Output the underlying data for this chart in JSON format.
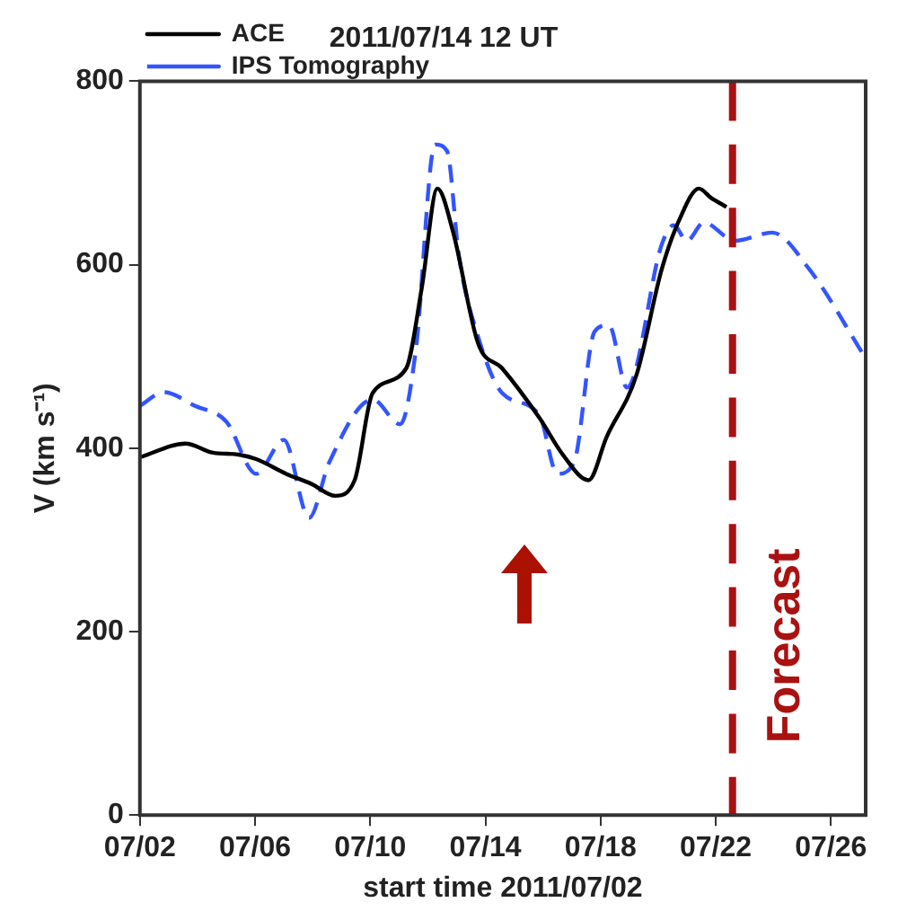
{
  "chart_data": {
    "type": "line",
    "title": "2011/07/14 12 UT",
    "xlabel": "start time 2011/07/02",
    "ylabel": "V (km s⁻¹)",
    "xlim": [
      "2011-07-02",
      "2011-07-27T05:00"
    ],
    "xticks": [
      {
        "value": "2011-07-02",
        "label": "07/02"
      },
      {
        "value": "2011-07-06",
        "label": "07/06"
      },
      {
        "value": "2011-07-10",
        "label": "07/10"
      },
      {
        "value": "2011-07-14",
        "label": "07/14"
      },
      {
        "value": "2011-07-18",
        "label": "07/18"
      },
      {
        "value": "2011-07-22",
        "label": "07/22"
      },
      {
        "value": "2011-07-26",
        "label": "07/26"
      }
    ],
    "ylim": [
      0,
      800
    ],
    "yticks": [
      0,
      200,
      400,
      600,
      800
    ],
    "grid": false,
    "legend": "top left",
    "marker": "none",
    "series": [
      {
        "name": "ACE",
        "color": "#000000",
        "line_style": "solid",
        "x": [
          "2011-07-02T00:00",
          "2011-07-03T14:00",
          "2011-07-04T13:00",
          "2011-07-05T10:00",
          "2011-07-06T01:00",
          "2011-07-07T02:00",
          "2011-07-07T23:00",
          "2011-07-08T19:00",
          "2011-07-09T11:00",
          "2011-07-10T02:00",
          "2011-07-11T06:00",
          "2011-07-11T19:00",
          "2011-07-12T08:00",
          "2011-07-12T21:00",
          "2011-07-13T18:00",
          "2011-07-14T14:00",
          "2011-07-15T21:00",
          "2011-07-16T17:00",
          "2011-07-17T14:00",
          "2011-07-18T05:00",
          "2011-07-19T06:00",
          "2011-07-20T03:00",
          "2011-07-20T18:00",
          "2011-07-21T10:00",
          "2011-07-21T20:00",
          "2011-07-22T09:00"
        ],
        "values": [
          390,
          405,
          395,
          393,
          388,
          372,
          361,
          348,
          365,
          460,
          487,
          575,
          683,
          636,
          514,
          487,
          433,
          392,
          365,
          412,
          480,
          595,
          650,
          683,
          673,
          663
        ]
      },
      {
        "name": "IPS Tomography",
        "color": "#3355ff",
        "line_style": "dashed",
        "x": [
          "2011-07-02T00:00",
          "2011-07-02T20:00",
          "2011-07-03T22:00",
          "2011-07-05T00:00",
          "2011-07-06T01:00",
          "2011-07-07T00:00",
          "2011-07-07T21:00",
          "2011-07-08T14:00",
          "2011-07-10T02:00",
          "2011-07-11T01:00",
          "2011-07-11T14:00",
          "2011-07-12T06:00",
          "2011-07-12T16:00",
          "2011-07-13T02:00",
          "2011-07-13T18:00",
          "2011-07-14T14:00",
          "2011-07-15T21:00",
          "2011-07-16T12:00",
          "2011-07-17T02:00",
          "2011-07-17T19:00",
          "2011-07-18T07:00",
          "2011-07-18T22:00",
          "2011-07-20T03:00",
          "2011-07-20T13:00",
          "2011-07-21T00:00",
          "2011-07-21T14:00",
          "2011-07-22T16:00",
          "2011-07-23T23:00",
          "2011-07-25T06:00",
          "2011-07-27T04:00"
        ],
        "values": [
          446,
          461,
          446,
          429,
          372,
          409,
          324,
          385,
          453,
          426,
          507,
          731,
          724,
          609,
          521,
          460,
          436,
          372,
          385,
          527,
          534,
          466,
          622,
          643,
          626,
          646,
          626,
          635,
          595,
          500
        ]
      }
    ],
    "ref_lines": [
      {
        "axis": "x",
        "value": "2011-07-22T14:00",
        "label": "Forecast",
        "color": "#aa1111",
        "line_style": "dashed"
      }
    ]
  }
}
